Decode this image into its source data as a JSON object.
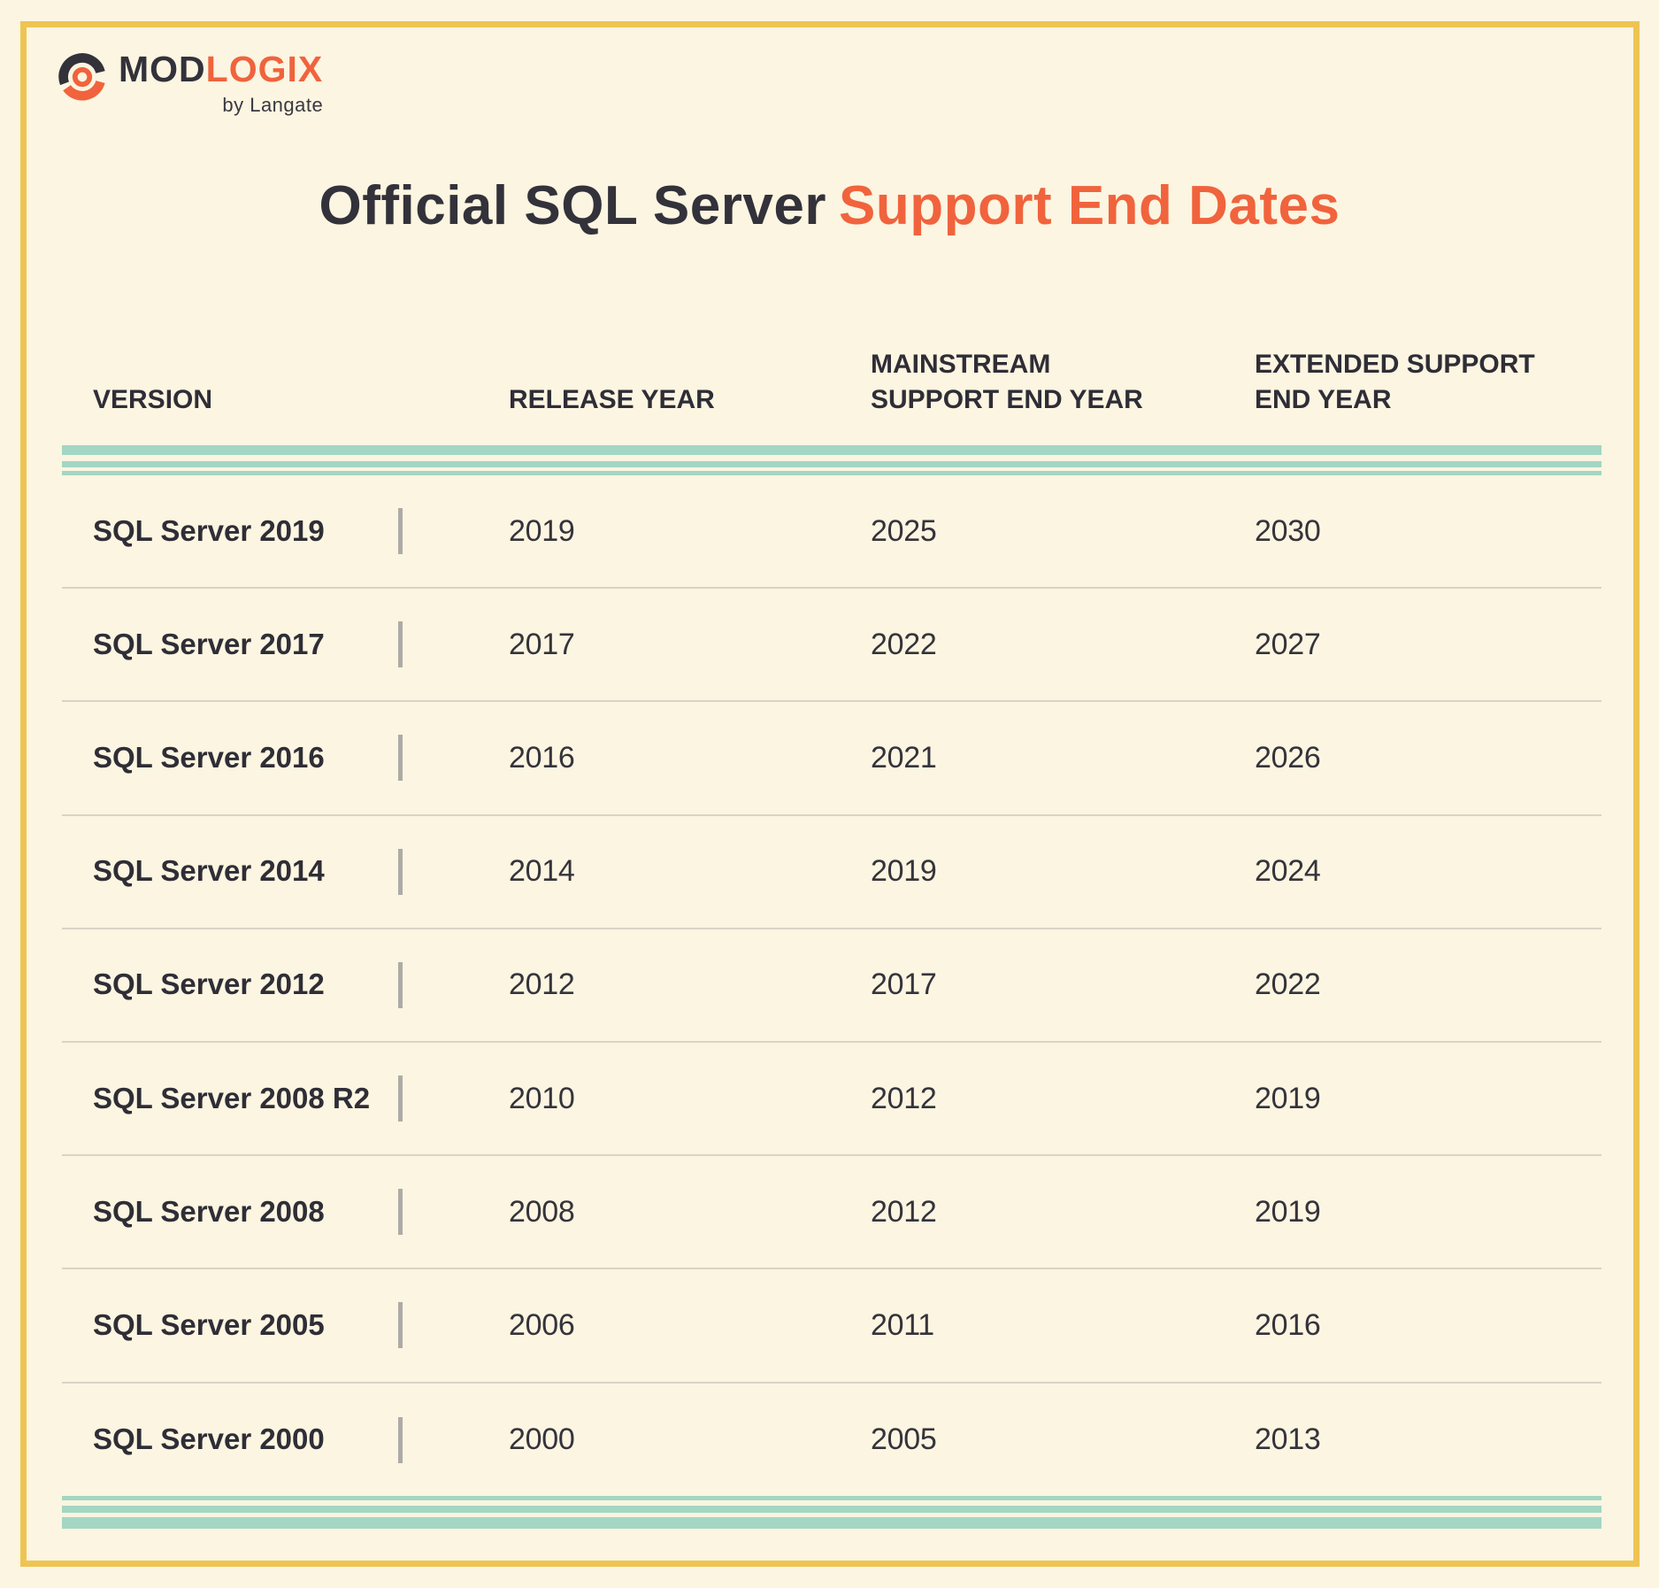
{
  "colors": {
    "background": "#FBF5E1",
    "frame_gold": "#EEC452",
    "text_charcoal": "#33313A",
    "accent_orange": "#F0633D",
    "separator_teal": "#A3D6C3",
    "row_divider": "#D8D4C6",
    "tick_gray": "#ADABA6"
  },
  "brand": {
    "word_primary": "MOD",
    "word_secondary": "LOGIX",
    "tagline": "by Langate"
  },
  "title": {
    "text_dark": "Official SQL Server",
    "text_accent": "Support End Dates"
  },
  "table_header": {
    "col1": {
      "line1": "",
      "line2": "VERSION"
    },
    "col2": {
      "line1": "",
      "line2": "RELEASE YEAR"
    },
    "col3": {
      "line1": "MAINSTREAM",
      "line2": "SUPPORT END YEAR"
    },
    "col4": {
      "line1": "EXTENDED SUPPORT",
      "line2": "END YEAR"
    }
  },
  "chart_data": {
    "type": "table",
    "title": "Official SQL Server Support End Dates",
    "columns": [
      "VERSION",
      "RELEASE YEAR",
      "MAINSTREAM SUPPORT END YEAR",
      "EXTENDED SUPPORT END YEAR"
    ],
    "rows": [
      [
        "SQL Server 2019",
        "2019",
        "2025",
        "2030"
      ],
      [
        "SQL Server 2017",
        "2017",
        "2022",
        "2027"
      ],
      [
        "SQL Server 2016",
        "2016",
        "2021",
        "2026"
      ],
      [
        "SQL Server 2014",
        "2014",
        "2019",
        "2024"
      ],
      [
        "SQL Server 2012",
        "2012",
        "2017",
        "2022"
      ],
      [
        "SQL Server 2008 R2",
        "2010",
        "2012",
        "2019"
      ],
      [
        "SQL Server 2008",
        "2008",
        "2012",
        "2019"
      ],
      [
        "SQL Server 2005",
        "2006",
        "2011",
        "2016"
      ],
      [
        "SQL Server 2000",
        "2000",
        "2005",
        "2013"
      ]
    ]
  }
}
